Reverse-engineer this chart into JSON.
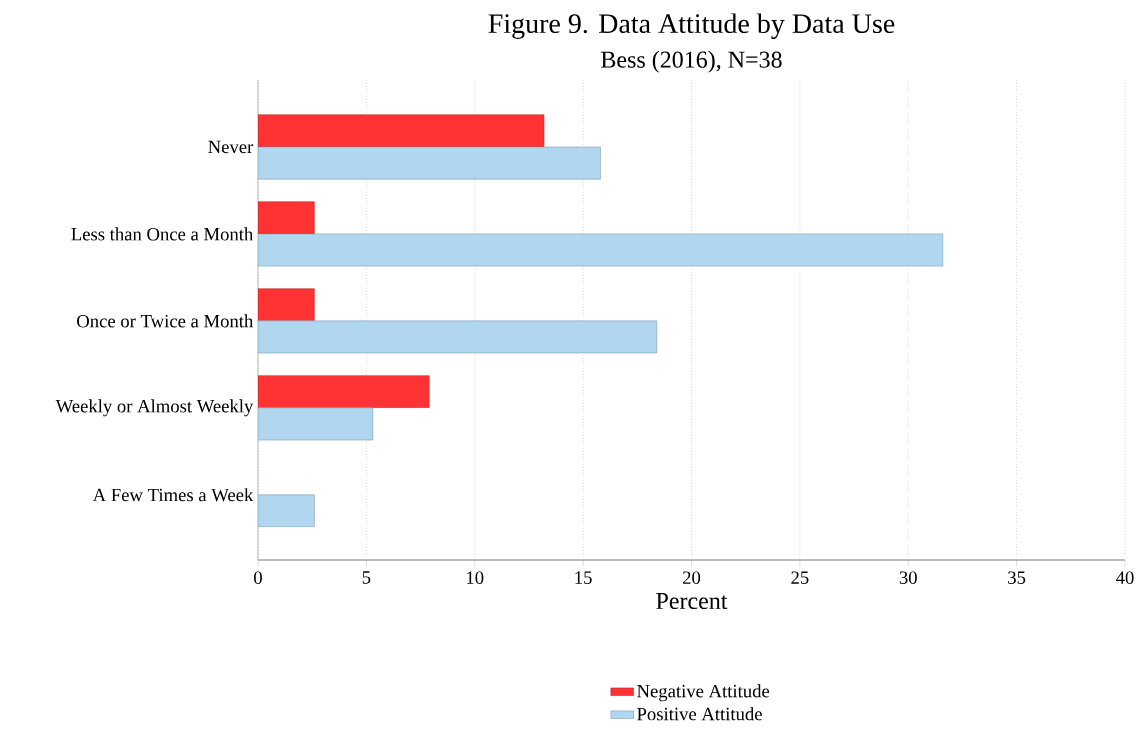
{
  "chart_data": {
    "type": "bar",
    "orientation": "horizontal",
    "title": "Figure 9. Data Attitude by Data Use",
    "subtitle": "Bess (2016), N=38",
    "xlabel": "Percent",
    "categories": [
      "Never",
      "Less than Once a Month",
      "Once or Twice a Month",
      "Weekly or Almost Weekly",
      "A Few Times a Week"
    ],
    "series": [
      {
        "name": "Negative Attitude",
        "color": "#ff3333",
        "values": [
          13.2,
          2.6,
          2.6,
          7.9,
          null
        ]
      },
      {
        "name": "Positive Attitude",
        "color": "#b0d6f0",
        "values": [
          15.8,
          31.6,
          18.4,
          5.3,
          2.6
        ]
      }
    ],
    "xlim": [
      0,
      40
    ],
    "xticks": [
      0,
      5,
      10,
      15,
      20,
      25,
      30,
      35,
      40
    ],
    "grid": "x",
    "legend": "bottom"
  }
}
